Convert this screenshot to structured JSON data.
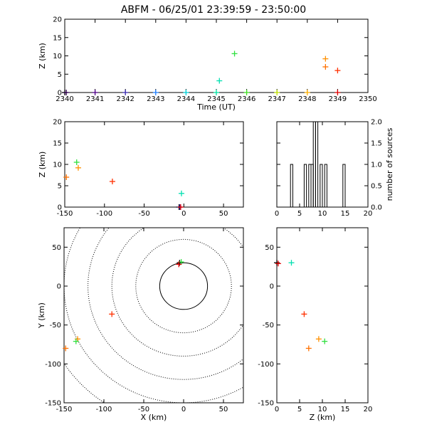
{
  "chart_data": [
    {
      "panel": "time-height",
      "type": "scatter",
      "title": "ABFM - 06/25/01 23:39:59 - 23:50:00",
      "xlabel": "Time (UT)",
      "ylabel": "Z (km)",
      "xlim": [
        2340,
        2350
      ],
      "ylim": [
        0,
        20
      ],
      "xticks": [
        2340,
        2341,
        2342,
        2343,
        2344,
        2345,
        2346,
        2347,
        2348,
        2349,
        2350
      ],
      "yticks": [
        0,
        5,
        10,
        15,
        20
      ],
      "points": [
        {
          "x": 2340.0,
          "y": 0.0,
          "color": "#000000"
        },
        {
          "x": 2340.05,
          "y": 0.0,
          "color": "#300050"
        },
        {
          "x": 2341.0,
          "y": 0.0,
          "color": "#50008a"
        },
        {
          "x": 2342.0,
          "y": 0.0,
          "color": "#3a2ab0"
        },
        {
          "x": 2343.0,
          "y": 0.0,
          "color": "#1e7fff"
        },
        {
          "x": 2344.0,
          "y": 0.0,
          "color": "#00d0d8"
        },
        {
          "x": 2345.0,
          "y": 0.0,
          "color": "#00e0a0"
        },
        {
          "x": 2345.1,
          "y": 3.2,
          "color": "#00e0b0"
        },
        {
          "x": 2345.6,
          "y": 10.6,
          "color": "#30e040"
        },
        {
          "x": 2346.0,
          "y": 0.0,
          "color": "#40e020"
        },
        {
          "x": 2347.0,
          "y": 0.0,
          "color": "#c0e000"
        },
        {
          "x": 2348.0,
          "y": 0.0,
          "color": "#ffb000"
        },
        {
          "x": 2348.6,
          "y": 9.2,
          "color": "#ff9000"
        },
        {
          "x": 2348.6,
          "y": 7.0,
          "color": "#ff7000"
        },
        {
          "x": 2349.0,
          "y": 6.0,
          "color": "#ff3000"
        },
        {
          "x": 2349.0,
          "y": 0.0,
          "color": "#e00000"
        }
      ]
    },
    {
      "panel": "x-height",
      "type": "scatter",
      "xlabel": "",
      "ylabel": "Z (km)",
      "xlim": [
        -150,
        75
      ],
      "ylim": [
        0,
        20
      ],
      "xticks": [
        -150,
        -100,
        -50,
        0,
        50
      ],
      "yticks": [
        0,
        5,
        10,
        15,
        20
      ],
      "points": [
        {
          "x": -148,
          "y": 7.0,
          "color": "#ff7000"
        },
        {
          "x": -135,
          "y": 10.5,
          "color": "#30e040"
        },
        {
          "x": -133,
          "y": 9.2,
          "color": "#ff9000"
        },
        {
          "x": -90,
          "y": 6.0,
          "color": "#ff3000"
        },
        {
          "x": -3,
          "y": 3.2,
          "color": "#00e0b0"
        },
        {
          "x": -6,
          "y": 0.0,
          "color": "#000000"
        },
        {
          "x": -5,
          "y": 0.0,
          "color": "#3a2ab0"
        },
        {
          "x": -4,
          "y": 0.0,
          "color": "#e00000"
        }
      ]
    },
    {
      "panel": "altitude-histogram",
      "type": "bar",
      "ylabel": "number of sources",
      "xlim": [
        0,
        20
      ],
      "ylim": [
        0,
        2
      ],
      "xticks": [
        0,
        5,
        10,
        15,
        20
      ],
      "yticks": [
        0.0,
        0.5,
        1.0,
        1.5,
        2.0
      ],
      "bin_width": 0.5,
      "bins": [
        {
          "x": 3.0,
          "count": 1
        },
        {
          "x": 6.0,
          "count": 1
        },
        {
          "x": 7.0,
          "count": 1
        },
        {
          "x": 7.5,
          "count": 1
        },
        {
          "x": 8.0,
          "count": 2
        },
        {
          "x": 8.5,
          "count": 2
        },
        {
          "x": 9.5,
          "count": 1
        },
        {
          "x": 10.5,
          "count": 1
        },
        {
          "x": 14.5,
          "count": 1
        }
      ]
    },
    {
      "panel": "plan-view",
      "type": "scatter",
      "xlabel": "X (km)",
      "ylabel": "Y (km)",
      "xlim": [
        -150,
        75
      ],
      "ylim": [
        -150,
        75
      ],
      "xticks": [
        -150,
        -100,
        -50,
        0,
        50
      ],
      "yticks": [
        -150,
        -100,
        -50,
        0,
        50
      ],
      "range_rings_km": [
        30,
        60,
        90,
        120,
        150,
        180
      ],
      "points": [
        {
          "x": -5,
          "y": 30,
          "color": "#000000"
        },
        {
          "x": -3,
          "y": 31,
          "color": "#30e040"
        },
        {
          "x": -6,
          "y": 28,
          "color": "#e00000"
        },
        {
          "x": -90,
          "y": -36,
          "color": "#ff3000"
        },
        {
          "x": -133,
          "y": -68,
          "color": "#ff9000"
        },
        {
          "x": -135,
          "y": -71,
          "color": "#30e040"
        },
        {
          "x": -148,
          "y": -80,
          "color": "#ff7000"
        }
      ]
    },
    {
      "panel": "z-y",
      "type": "scatter",
      "xlabel": "Z (km)",
      "ylabel": "",
      "xlim": [
        0,
        20
      ],
      "ylim": [
        -150,
        75
      ],
      "xticks": [
        0,
        5,
        10,
        15,
        20
      ],
      "yticks": [
        -150,
        -100,
        -50,
        0,
        50
      ],
      "points": [
        {
          "x": 0.0,
          "y": 30,
          "color": "#000000"
        },
        {
          "x": 0.3,
          "y": 29,
          "color": "#e00000"
        },
        {
          "x": 3.2,
          "y": 30,
          "color": "#00e0b0"
        },
        {
          "x": 6.0,
          "y": -36,
          "color": "#ff3000"
        },
        {
          "x": 9.2,
          "y": -68,
          "color": "#ff9000"
        },
        {
          "x": 7.0,
          "y": -80,
          "color": "#ff7000"
        },
        {
          "x": 10.5,
          "y": -71,
          "color": "#30e040"
        }
      ]
    }
  ]
}
